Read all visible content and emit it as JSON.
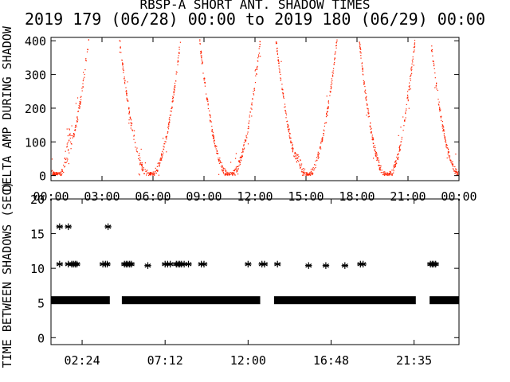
{
  "title_line1": "RBSP-A SHORT ANT. SHADOW TIMES",
  "title_line2": "2019 179 (06/28) 00:00 to 2019 180 (06/29) 00:00",
  "colors": {
    "scatter": "#ff2200",
    "axis": "#000000",
    "background": "#ffffff"
  },
  "chart_data": [
    {
      "type": "scatter",
      "ylabel": "DELTA AMP DURING SHADOW",
      "ylim": [
        -15,
        410
      ],
      "yticks": [
        "0",
        "100",
        "200",
        "300",
        "400"
      ],
      "xlim_hours": [
        0,
        24
      ],
      "xticks": [
        "00:00",
        "03:00",
        "06:00",
        "09:00",
        "12:00",
        "15:00",
        "18:00",
        "21:00",
        "00:00"
      ],
      "bands": [
        {
          "a": [
            -1.6,
            2.2
          ],
          "b": [
            4.0,
            7.6
          ],
          "bump": {
            "at": 1.0,
            "width": 0.35,
            "size": 90
          }
        },
        {
          "a": [
            8.7,
            12.3
          ],
          "b": [
            13.2,
            16.8
          ],
          "bump": {
            "at": 14.6,
            "width": 0.4,
            "size": 45
          }
        },
        {
          "a": [
            18.1,
            21.4
          ],
          "b": [
            22.3,
            25.9
          ],
          "bump": {
            "at": 21.0,
            "width": 0.35,
            "size": 30
          }
        }
      ]
    },
    {
      "type": "scatter",
      "ylabel": "TIME BETWEEN SHADOWS (SEC)",
      "ylim": [
        -1,
        20
      ],
      "yticks": [
        "0",
        "5",
        "10",
        "15",
        "20"
      ],
      "xlim_hours": [
        0.6,
        24.2
      ],
      "xticks": [
        "02:24",
        "07:12",
        "12:00",
        "16:48",
        "21:35"
      ],
      "baseline_value": 5.4,
      "baseline_segments": [
        [
          0.6,
          4.0
        ],
        [
          4.7,
          12.7
        ],
        [
          13.5,
          21.7
        ],
        [
          22.5,
          24.2
        ]
      ],
      "points": [
        [
          1.1,
          16
        ],
        [
          1.6,
          16
        ],
        [
          3.9,
          16
        ],
        [
          1.1,
          10.6
        ],
        [
          1.6,
          10.6
        ],
        [
          1.8,
          10.6
        ],
        [
          1.9,
          10.6
        ],
        [
          2.0,
          10.6
        ],
        [
          2.1,
          10.6
        ],
        [
          3.6,
          10.6
        ],
        [
          3.75,
          10.6
        ],
        [
          3.85,
          10.6
        ],
        [
          4.85,
          10.6
        ],
        [
          4.95,
          10.6
        ],
        [
          5.05,
          10.6
        ],
        [
          5.15,
          10.6
        ],
        [
          5.25,
          10.6
        ],
        [
          6.2,
          10.4
        ],
        [
          7.2,
          10.6
        ],
        [
          7.35,
          10.6
        ],
        [
          7.5,
          10.6
        ],
        [
          7.85,
          10.6
        ],
        [
          7.95,
          10.6
        ],
        [
          8.05,
          10.6
        ],
        [
          8.15,
          10.6
        ],
        [
          8.3,
          10.6
        ],
        [
          8.55,
          10.6
        ],
        [
          9.3,
          10.6
        ],
        [
          9.45,
          10.6
        ],
        [
          12.0,
          10.6
        ],
        [
          12.8,
          10.6
        ],
        [
          12.95,
          10.6
        ],
        [
          13.7,
          10.6
        ],
        [
          15.5,
          10.4
        ],
        [
          16.5,
          10.4
        ],
        [
          17.6,
          10.4
        ],
        [
          18.5,
          10.6
        ],
        [
          18.65,
          10.6
        ],
        [
          22.55,
          10.6
        ],
        [
          22.65,
          10.6
        ],
        [
          22.75,
          10.6
        ],
        [
          22.85,
          10.6
        ]
      ]
    }
  ]
}
